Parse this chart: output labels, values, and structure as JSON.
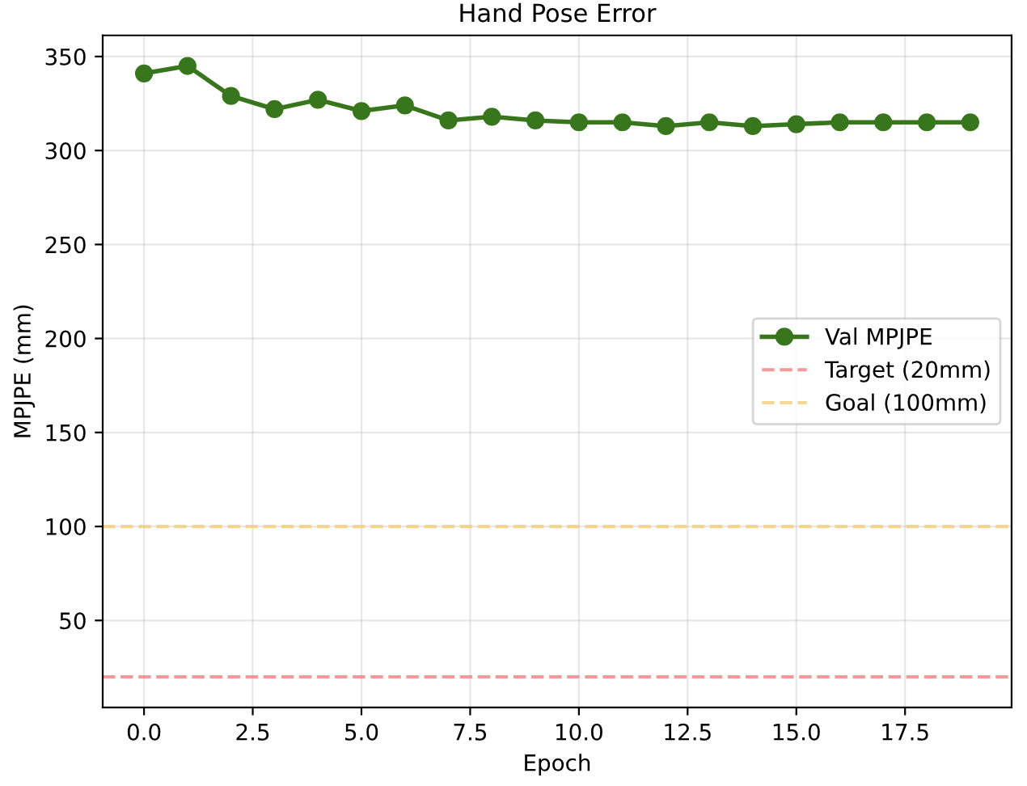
{
  "chart_data": {
    "type": "line",
    "title": "Hand Pose Error",
    "xlabel": "Epoch",
    "ylabel": "MPJPE (mm)",
    "x": [
      0,
      1,
      2,
      3,
      4,
      5,
      6,
      7,
      8,
      9,
      10,
      11,
      12,
      13,
      14,
      15,
      16,
      17,
      18,
      19
    ],
    "series": [
      {
        "name": "Val MPJPE",
        "color": "#38761d",
        "values": [
          341,
          345,
          329,
          322,
          327,
          321,
          324,
          316,
          318,
          316,
          315,
          315,
          313,
          315,
          313,
          314,
          315,
          315,
          315,
          315
        ]
      }
    ],
    "ref_lines": [
      {
        "axis": "y",
        "value": 20,
        "label": "Target (20mm)",
        "color": "#f08080",
        "line_style": "dashed"
      },
      {
        "axis": "y",
        "value": 100,
        "label": "Goal (100mm)",
        "color": "#f5cd79",
        "line_style": "dashed"
      }
    ],
    "xlim": [
      -0.95,
      19.95
    ],
    "ylim": [
      3.75,
      361.25
    ],
    "xticks": [
      {
        "value": 0,
        "label": "0.0"
      },
      {
        "value": 2.5,
        "label": "2.5"
      },
      {
        "value": 5,
        "label": "5.0"
      },
      {
        "value": 7.5,
        "label": "7.5"
      },
      {
        "value": 10,
        "label": "10.0"
      },
      {
        "value": 12.5,
        "label": "12.5"
      },
      {
        "value": 15,
        "label": "15.0"
      },
      {
        "value": 17.5,
        "label": "17.5"
      }
    ],
    "yticks": [
      50,
      100,
      150,
      200,
      250,
      300,
      350
    ],
    "grid": true,
    "legend": "right",
    "marker": "circle",
    "line_style": "solid"
  }
}
